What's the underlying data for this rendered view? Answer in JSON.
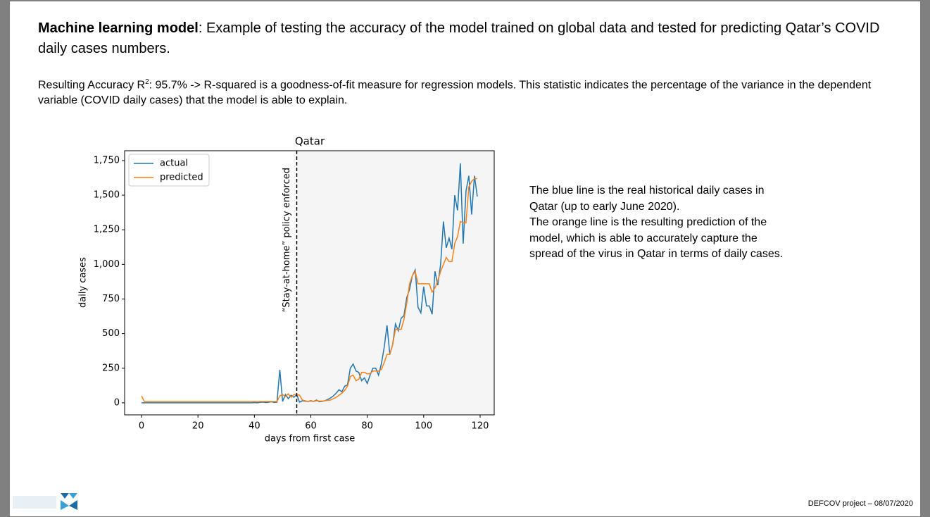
{
  "slide": {
    "title_bold": "Machine learning model",
    "title_rest": ": Example of testing the accuracy of the model trained on global data and tested for predicting Qatar’s COVID daily cases numbers.",
    "accuracy_before_sup": "Resulting Accuracy R",
    "accuracy_sup": "2",
    "accuracy_after_sup": ": 95.7% -> R-squared is a goodness-of-fit measure for regression models. This statistic indicates the percentage of the variance in the dependent variable (COVID daily cases) that the model is able to explain.",
    "side_text": [
      "The blue line is the real historical daily cases in Qatar (up to early June 2020).",
      "The orange line is the resulting prediction of the model, which is able to accurately capture the spread of the virus in Qatar in terms of daily cases."
    ],
    "footer": "DEFCOV project – 08/07/2020"
  },
  "chart_data": {
    "type": "line",
    "title": "Qatar",
    "x_label": "days from first case",
    "y_label": "daily cases",
    "xlim": [
      -6,
      125
    ],
    "ylim": [
      -87,
      1821
    ],
    "xticks": [
      0,
      20,
      40,
      60,
      80,
      100,
      120
    ],
    "yticks": [
      0,
      250,
      500,
      750,
      {
        "value": 1000,
        "label": "1,000"
      },
      {
        "value": 1250,
        "label": "1,250"
      },
      {
        "value": 1500,
        "label": "1,500"
      },
      {
        "value": 1750,
        "label": "1,750"
      }
    ],
    "legend": "upper left",
    "annotation": {
      "x": 55,
      "label": "“Stay-at-home” policy enforced"
    },
    "x": [
      0,
      1,
      2,
      3,
      4,
      5,
      6,
      7,
      8,
      9,
      10,
      11,
      12,
      13,
      14,
      15,
      16,
      17,
      18,
      19,
      20,
      21,
      22,
      23,
      24,
      25,
      26,
      27,
      28,
      29,
      30,
      31,
      32,
      33,
      34,
      35,
      36,
      37,
      38,
      39,
      40,
      41,
      42,
      43,
      44,
      45,
      46,
      47,
      48,
      49,
      50,
      51,
      52,
      53,
      54,
      55,
      56,
      57,
      58,
      59,
      60,
      61,
      62,
      63,
      64,
      65,
      66,
      67,
      68,
      69,
      70,
      71,
      72,
      73,
      74,
      75,
      76,
      77,
      78,
      79,
      80,
      81,
      82,
      83,
      84,
      85,
      86,
      87,
      88,
      89,
      90,
      91,
      92,
      93,
      94,
      95,
      96,
      97,
      98,
      99,
      100,
      101,
      102,
      103,
      104,
      105,
      106,
      107,
      108,
      109,
      110,
      111,
      112,
      113,
      114,
      115,
      116,
      117,
      118,
      119
    ],
    "series": [
      {
        "name": "actual",
        "color": "#1f77b4",
        "values": [
          0,
          0,
          0,
          0,
          0,
          0,
          0,
          0,
          0,
          0,
          0,
          0,
          0,
          0,
          0,
          0,
          0,
          0,
          0,
          0,
          0,
          0,
          0,
          0,
          0,
          0,
          0,
          0,
          0,
          0,
          0,
          0,
          0,
          0,
          0,
          0,
          0,
          0,
          0,
          0,
          2,
          0,
          3,
          5,
          2,
          4,
          8,
          3,
          5,
          238,
          10,
          60,
          30,
          55,
          40,
          60,
          5,
          15,
          12,
          10,
          15,
          10,
          20,
          8,
          10,
          15,
          25,
          35,
          50,
          70,
          95,
          80,
          120,
          130,
          250,
          280,
          230,
          220,
          160,
          180,
          140,
          200,
          250,
          250,
          200,
          280,
          400,
          560,
          350,
          420,
          570,
          520,
          610,
          630,
          760,
          820,
          920,
          960,
          690,
          650,
          840,
          700,
          700,
          640,
          950,
          850,
          1000,
          1310,
          1120,
          1190,
          1110,
          1500,
          1390,
          1730,
          1150,
          1530,
          1640,
          1360,
          1640,
          1490
        ]
      },
      {
        "name": "predicted",
        "color": "#ff7f0e",
        "values": [
          50,
          10,
          10,
          10,
          10,
          10,
          10,
          10,
          10,
          10,
          10,
          10,
          10,
          10,
          10,
          10,
          10,
          10,
          10,
          10,
          10,
          10,
          10,
          10,
          10,
          10,
          10,
          10,
          10,
          10,
          10,
          10,
          10,
          10,
          10,
          10,
          10,
          10,
          10,
          10,
          10,
          10,
          10,
          10,
          10,
          10,
          10,
          10,
          10,
          50,
          60,
          45,
          65,
          40,
          60,
          60,
          55,
          20,
          15,
          10,
          12,
          10,
          15,
          12,
          12,
          15,
          18,
          20,
          30,
          40,
          55,
          70,
          90,
          120,
          190,
          200,
          160,
          170,
          220,
          220,
          210,
          210,
          230,
          230,
          230,
          240,
          290,
          350,
          350,
          420,
          530,
          530,
          530,
          600,
          720,
          860,
          920,
          950,
          860,
          860,
          860,
          860,
          860,
          800,
          830,
          880,
          950,
          1000,
          1050,
          1020,
          1020,
          1150,
          1200,
          1310,
          1300,
          1300,
          1560,
          1600,
          1620,
          1620
        ]
      }
    ]
  }
}
